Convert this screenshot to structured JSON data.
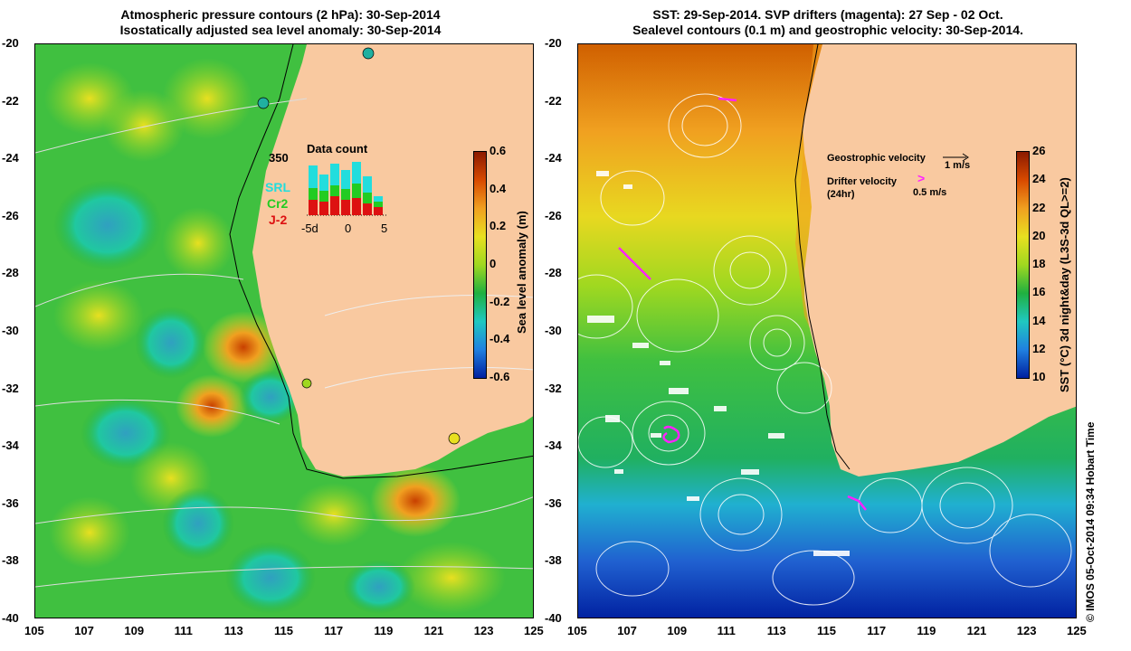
{
  "left_panel": {
    "title_line1": "Atmospheric pressure contours (2 hPa): 30-Sep-2014",
    "title_line2": "Isostatically adjusted sea level anomaly: 30-Sep-2014",
    "colorbar": {
      "label": "Sea level anomaly (m)",
      "ticks": [
        "0.6",
        "0.4",
        "0.2",
        "0",
        "-0.2",
        "-0.4",
        "-0.6"
      ],
      "colors": [
        "#8b1a00",
        "#d84a00",
        "#f0a020",
        "#e8e020",
        "#a0d820",
        "#20b040",
        "#20c8c0",
        "#2080e0",
        "#0020a0"
      ]
    },
    "inset": {
      "title": "Data count",
      "max_label": "350",
      "x_ticks": [
        "-5d",
        "0",
        "5"
      ],
      "legend": [
        {
          "name": "SRL",
          "color": "#22dddd"
        },
        {
          "name": "Cr2",
          "color": "#22cc22"
        },
        {
          "name": "J-2",
          "color": "#dd1111"
        }
      ]
    }
  },
  "right_panel": {
    "title_line1": "SST: 29-Sep-2014. SVP drifters (magenta): 27 Sep - 02 Oct.",
    "title_line2": "Sealevel contours (0.1 m) and geostrophic velocity: 30-Sep-2014.",
    "legend_geo_label": "Geostrophic velocity",
    "legend_geo_scale": "1 m/s",
    "legend_drifter_label": "Drifter velocity",
    "legend_drifter_sub": "(24hr)",
    "legend_drifter_scale": "0.5 m/s",
    "colorbar": {
      "label": "SST (°C) 3d night&day (L3S-3d QL>=2)",
      "ticks": [
        "26",
        "24",
        "22",
        "20",
        "18",
        "16",
        "14",
        "12",
        "10"
      ],
      "colors": [
        "#8b1a00",
        "#d84a00",
        "#f0a020",
        "#e8e020",
        "#a0d820",
        "#20b040",
        "#20c8c0",
        "#2080e0",
        "#0020a0"
      ]
    }
  },
  "axes": {
    "lat_ticks": [
      "-20",
      "-22",
      "-24",
      "-26",
      "-28",
      "-30",
      "-32",
      "-34",
      "-36",
      "-38",
      "-40"
    ],
    "lon_ticks": [
      "105",
      "107",
      "109",
      "111",
      "113",
      "115",
      "117",
      "119",
      "121",
      "123",
      "125"
    ]
  },
  "land_color": "#f9c9a0",
  "credit": "© IMOS 05-Oct-2014 09:34 Hobart Time"
}
